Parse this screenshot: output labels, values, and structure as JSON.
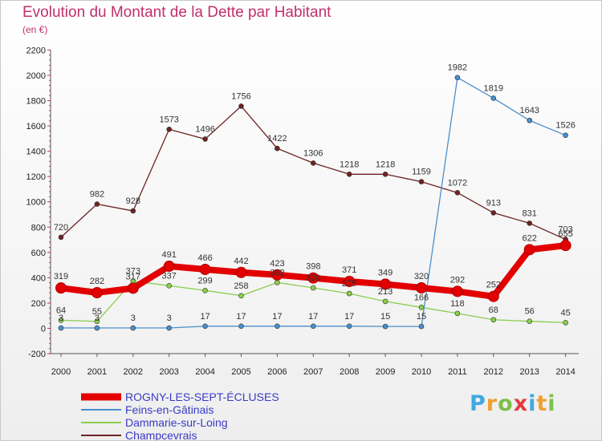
{
  "title": "Evolution du Montant de la Dette par Habitant",
  "unit": "(en €)",
  "logo": {
    "letters": [
      "P",
      "r",
      "o",
      "x",
      "i",
      "t",
      "i"
    ],
    "colors": [
      "#3fa9e0",
      "#f0a030",
      "#7cc04a",
      "#e63c3c",
      "#3fa9e0",
      "#f0a030",
      "#7cc04a"
    ]
  },
  "chart_data": {
    "type": "line",
    "x": [
      "2000",
      "2001",
      "2002",
      "2003",
      "2004",
      "2005",
      "2006",
      "2007",
      "2008",
      "2009",
      "2010",
      "2011",
      "2012",
      "2013",
      "2014"
    ],
    "ylim": [
      -200,
      2200
    ],
    "yticks": [
      "-200",
      "0",
      "200",
      "400",
      "600",
      "800",
      "1000",
      "1200",
      "1400",
      "1600",
      "1800",
      "2000",
      "2200"
    ],
    "grid": false,
    "legend_position": "bottom",
    "series": [
      {
        "name": "ROGNY-LES-SEPT-ÉCLUSES",
        "color": "#e20000",
        "emphasis": true,
        "values": [
          319,
          282,
          317,
          491,
          466,
          442,
          423,
          398,
          371,
          349,
          320,
          292,
          252,
          622,
          655
        ],
        "labels": [
          "319",
          "282",
          "317",
          "491",
          "466",
          "442",
          "423",
          "398",
          "371",
          "349",
          "320",
          "292",
          "252",
          "622",
          "655"
        ]
      },
      {
        "name": "Feins-en-Gâtinais",
        "color": "#4a8fcb",
        "values": [
          3,
          3,
          3,
          3,
          17,
          17,
          17,
          17,
          17,
          15,
          15,
          1982,
          1819,
          1643,
          1526
        ],
        "labels": [
          "3",
          "3",
          "3",
          "3",
          "17",
          "17",
          "17",
          "17",
          "17",
          "15",
          "15",
          "1982",
          "1819",
          "1643",
          "1526"
        ]
      },
      {
        "name": "Dammarie-sur-Loing",
        "color": "#8acd4e",
        "values": [
          64,
          55,
          373,
          337,
          299,
          258,
          362,
          320,
          275,
          213,
          166,
          118,
          68,
          56,
          45
        ],
        "labels": [
          "64",
          "55",
          "373",
          "337",
          "299",
          "258",
          "362",
          "320",
          "275",
          "213",
          "166",
          "118",
          "68",
          "56",
          "45"
        ]
      },
      {
        "name": "Champcevrais",
        "color": "#6e2323",
        "values": [
          720,
          982,
          928,
          1573,
          1496,
          1756,
          1422,
          1306,
          1218,
          1218,
          1159,
          1072,
          913,
          831,
          703
        ],
        "labels": [
          "720",
          "982",
          "928",
          "1573",
          "1496",
          "1756",
          "1422",
          "1306",
          "1218",
          "1218",
          "1159",
          "1072",
          "913",
          "831",
          "703"
        ]
      }
    ]
  }
}
